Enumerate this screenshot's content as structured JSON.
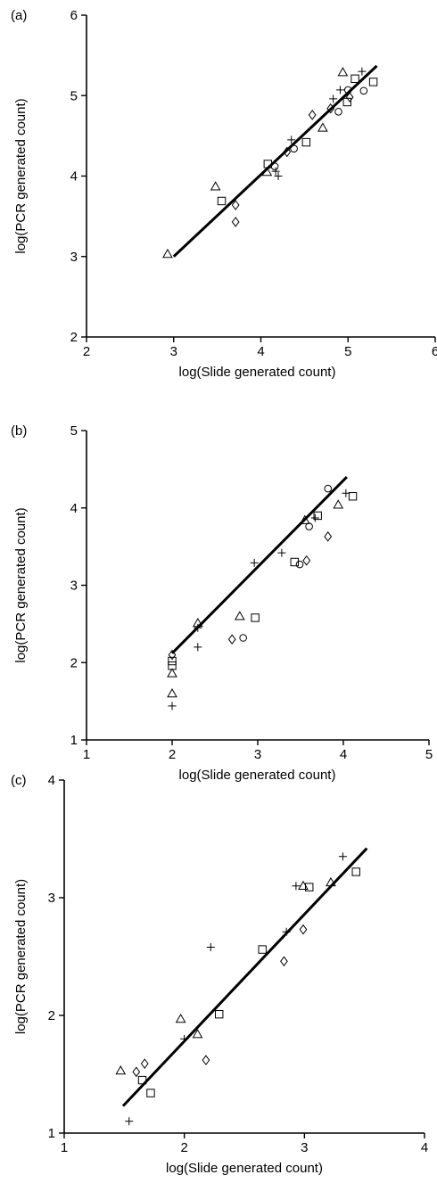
{
  "chart_data": [
    {
      "panel": "(a)",
      "type": "scatter",
      "xlabel": "log(Slide generated count)",
      "ylabel": "log(PCR generated count)",
      "xlim": [
        2,
        6
      ],
      "ylim": [
        2,
        6
      ],
      "xticks": [
        2,
        3,
        4,
        5,
        6
      ],
      "yticks": [
        2,
        3,
        4,
        5,
        6
      ],
      "fit_line": {
        "x": [
          3.0,
          5.33
        ],
        "y": [
          3.0,
          5.37
        ]
      },
      "series": [
        {
          "marker": "triangle",
          "points": [
            [
              2.93,
              3.03
            ],
            [
              3.48,
              3.87
            ],
            [
              4.07,
              4.05
            ],
            [
              4.71,
              4.6
            ],
            [
              4.94,
              5.29
            ]
          ]
        },
        {
          "marker": "square",
          "points": [
            [
              3.55,
              3.69
            ],
            [
              4.08,
              4.15
            ],
            [
              4.52,
              4.42
            ],
            [
              4.99,
              4.92
            ],
            [
              5.08,
              5.21
            ],
            [
              5.29,
              5.17
            ]
          ]
        },
        {
          "marker": "diamond",
          "points": [
            [
              3.71,
              3.64
            ],
            [
              3.71,
              3.43
            ],
            [
              4.3,
              4.3
            ],
            [
              4.59,
              4.76
            ],
            [
              4.8,
              4.84
            ],
            [
              5.02,
              4.98
            ]
          ]
        },
        {
          "marker": "circle",
          "points": [
            [
              4.16,
              4.12
            ],
            [
              4.38,
              4.34
            ],
            [
              4.89,
              4.8
            ],
            [
              5.0,
              5.07
            ],
            [
              5.18,
              5.06
            ]
          ]
        },
        {
          "marker": "plus",
          "points": [
            [
              4.2,
              4.0
            ],
            [
              4.17,
              4.06
            ],
            [
              4.35,
              4.45
            ],
            [
              4.83,
              4.96
            ],
            [
              4.91,
              5.07
            ],
            [
              5.16,
              5.3
            ]
          ]
        }
      ]
    },
    {
      "panel": "(b)",
      "type": "scatter",
      "xlabel": "log(Slide generated count)",
      "ylabel": "log(PCR generated count)",
      "xlim": [
        1,
        5
      ],
      "ylim": [
        1,
        5
      ],
      "xticks": [
        1,
        2,
        3,
        4,
        5
      ],
      "yticks": [
        1,
        2,
        3,
        4,
        5
      ],
      "fit_line": {
        "x": [
          2.0,
          4.04
        ],
        "y": [
          2.12,
          4.4
        ]
      },
      "series": [
        {
          "marker": "triangle",
          "points": [
            [
              2.0,
              1.6
            ],
            [
              2.0,
              1.86
            ],
            [
              2.3,
              2.51
            ],
            [
              2.79,
              2.6
            ],
            [
              3.55,
              3.84
            ],
            [
              3.94,
              4.04
            ]
          ]
        },
        {
          "marker": "square",
          "points": [
            [
              2.0,
              1.96
            ],
            [
              2.0,
              2.02
            ],
            [
              2.97,
              2.58
            ],
            [
              3.43,
              3.3
            ],
            [
              3.7,
              3.9
            ],
            [
              4.11,
              4.15
            ]
          ]
        },
        {
          "marker": "diamond",
          "points": [
            [
              2.0,
              2.1
            ],
            [
              2.7,
              2.3
            ],
            [
              3.57,
              3.32
            ],
            [
              3.82,
              3.63
            ]
          ]
        },
        {
          "marker": "circle",
          "points": [
            [
              2.83,
              2.32
            ],
            [
              3.49,
              3.27
            ],
            [
              3.6,
              3.76
            ],
            [
              3.82,
              4.25
            ]
          ]
        },
        {
          "marker": "plus",
          "points": [
            [
              2.0,
              1.44
            ],
            [
              2.3,
              2.2
            ],
            [
              2.3,
              2.45
            ],
            [
              2.96,
              3.29
            ],
            [
              3.28,
              3.42
            ],
            [
              3.67,
              3.87
            ],
            [
              4.03,
              4.19
            ]
          ]
        }
      ]
    },
    {
      "panel": "(c)",
      "type": "scatter",
      "xlabel": "log(Slide generated count)",
      "ylabel": "log(PCR generated count)",
      "xlim": [
        1,
        4
      ],
      "ylim": [
        1,
        4
      ],
      "xticks": [
        1,
        2,
        3,
        4
      ],
      "yticks": [
        1,
        2,
        3,
        4
      ],
      "fit_line": {
        "x": [
          1.49,
          3.52
        ],
        "y": [
          1.23,
          3.42
        ]
      },
      "series": [
        {
          "marker": "triangle",
          "points": [
            [
              1.47,
              1.53
            ],
            [
              1.97,
              1.97
            ],
            [
              2.11,
              1.84
            ],
            [
              2.99,
              3.1
            ],
            [
              3.22,
              3.13
            ]
          ]
        },
        {
          "marker": "square",
          "points": [
            [
              1.65,
              1.45
            ],
            [
              1.72,
              1.34
            ],
            [
              2.29,
              2.01
            ],
            [
              2.65,
              2.56
            ],
            [
              3.04,
              3.09
            ],
            [
              3.43,
              3.22
            ]
          ]
        },
        {
          "marker": "diamond",
          "points": [
            [
              1.6,
              1.52
            ],
            [
              1.67,
              1.59
            ],
            [
              2.18,
              1.62
            ],
            [
              2.83,
              2.46
            ],
            [
              2.99,
              2.73
            ]
          ]
        },
        {
          "marker": "plus",
          "points": [
            [
              1.54,
              1.1
            ],
            [
              2.0,
              1.8
            ],
            [
              2.22,
              2.58
            ],
            [
              2.85,
              2.71
            ],
            [
              2.93,
              3.1
            ],
            [
              3.32,
              3.35
            ]
          ]
        }
      ]
    }
  ]
}
